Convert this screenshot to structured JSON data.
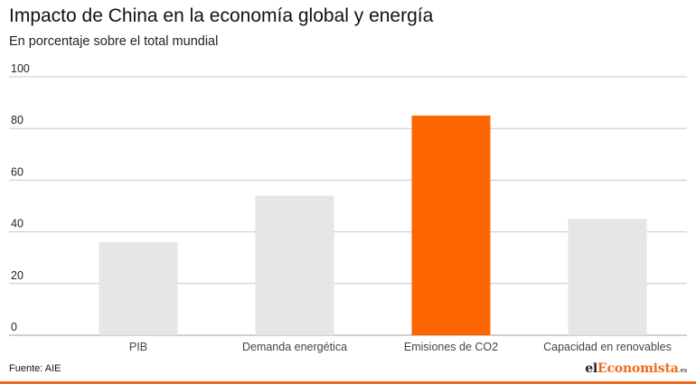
{
  "title": "Impacto de China en la economía global y energía",
  "subtitle": "En porcentaje sobre el total mundial",
  "source": "Fuente: AIE",
  "logo": {
    "part1": "el",
    "part2": "Economista",
    "part3": ".es"
  },
  "colors": {
    "highlight": "#ff6600",
    "default": "#e6e6e6",
    "grid": "#c8c8c8",
    "brand_accent": "#f06a1a"
  },
  "chart_data": {
    "type": "bar",
    "title": "Impacto de China en la economía global y energía",
    "subtitle": "En porcentaje sobre el total mundial",
    "categories": [
      "PIB",
      "Demanda energética",
      "Emisiones de CO2",
      "Capacidad en renovables"
    ],
    "values": [
      36,
      54,
      85,
      45
    ],
    "highlighted": [
      "Emisiones de CO2"
    ],
    "ylim": [
      0,
      100
    ],
    "yticks": [
      0,
      20,
      40,
      60,
      80,
      100
    ],
    "grid": true,
    "xlabel": "",
    "ylabel": ""
  }
}
